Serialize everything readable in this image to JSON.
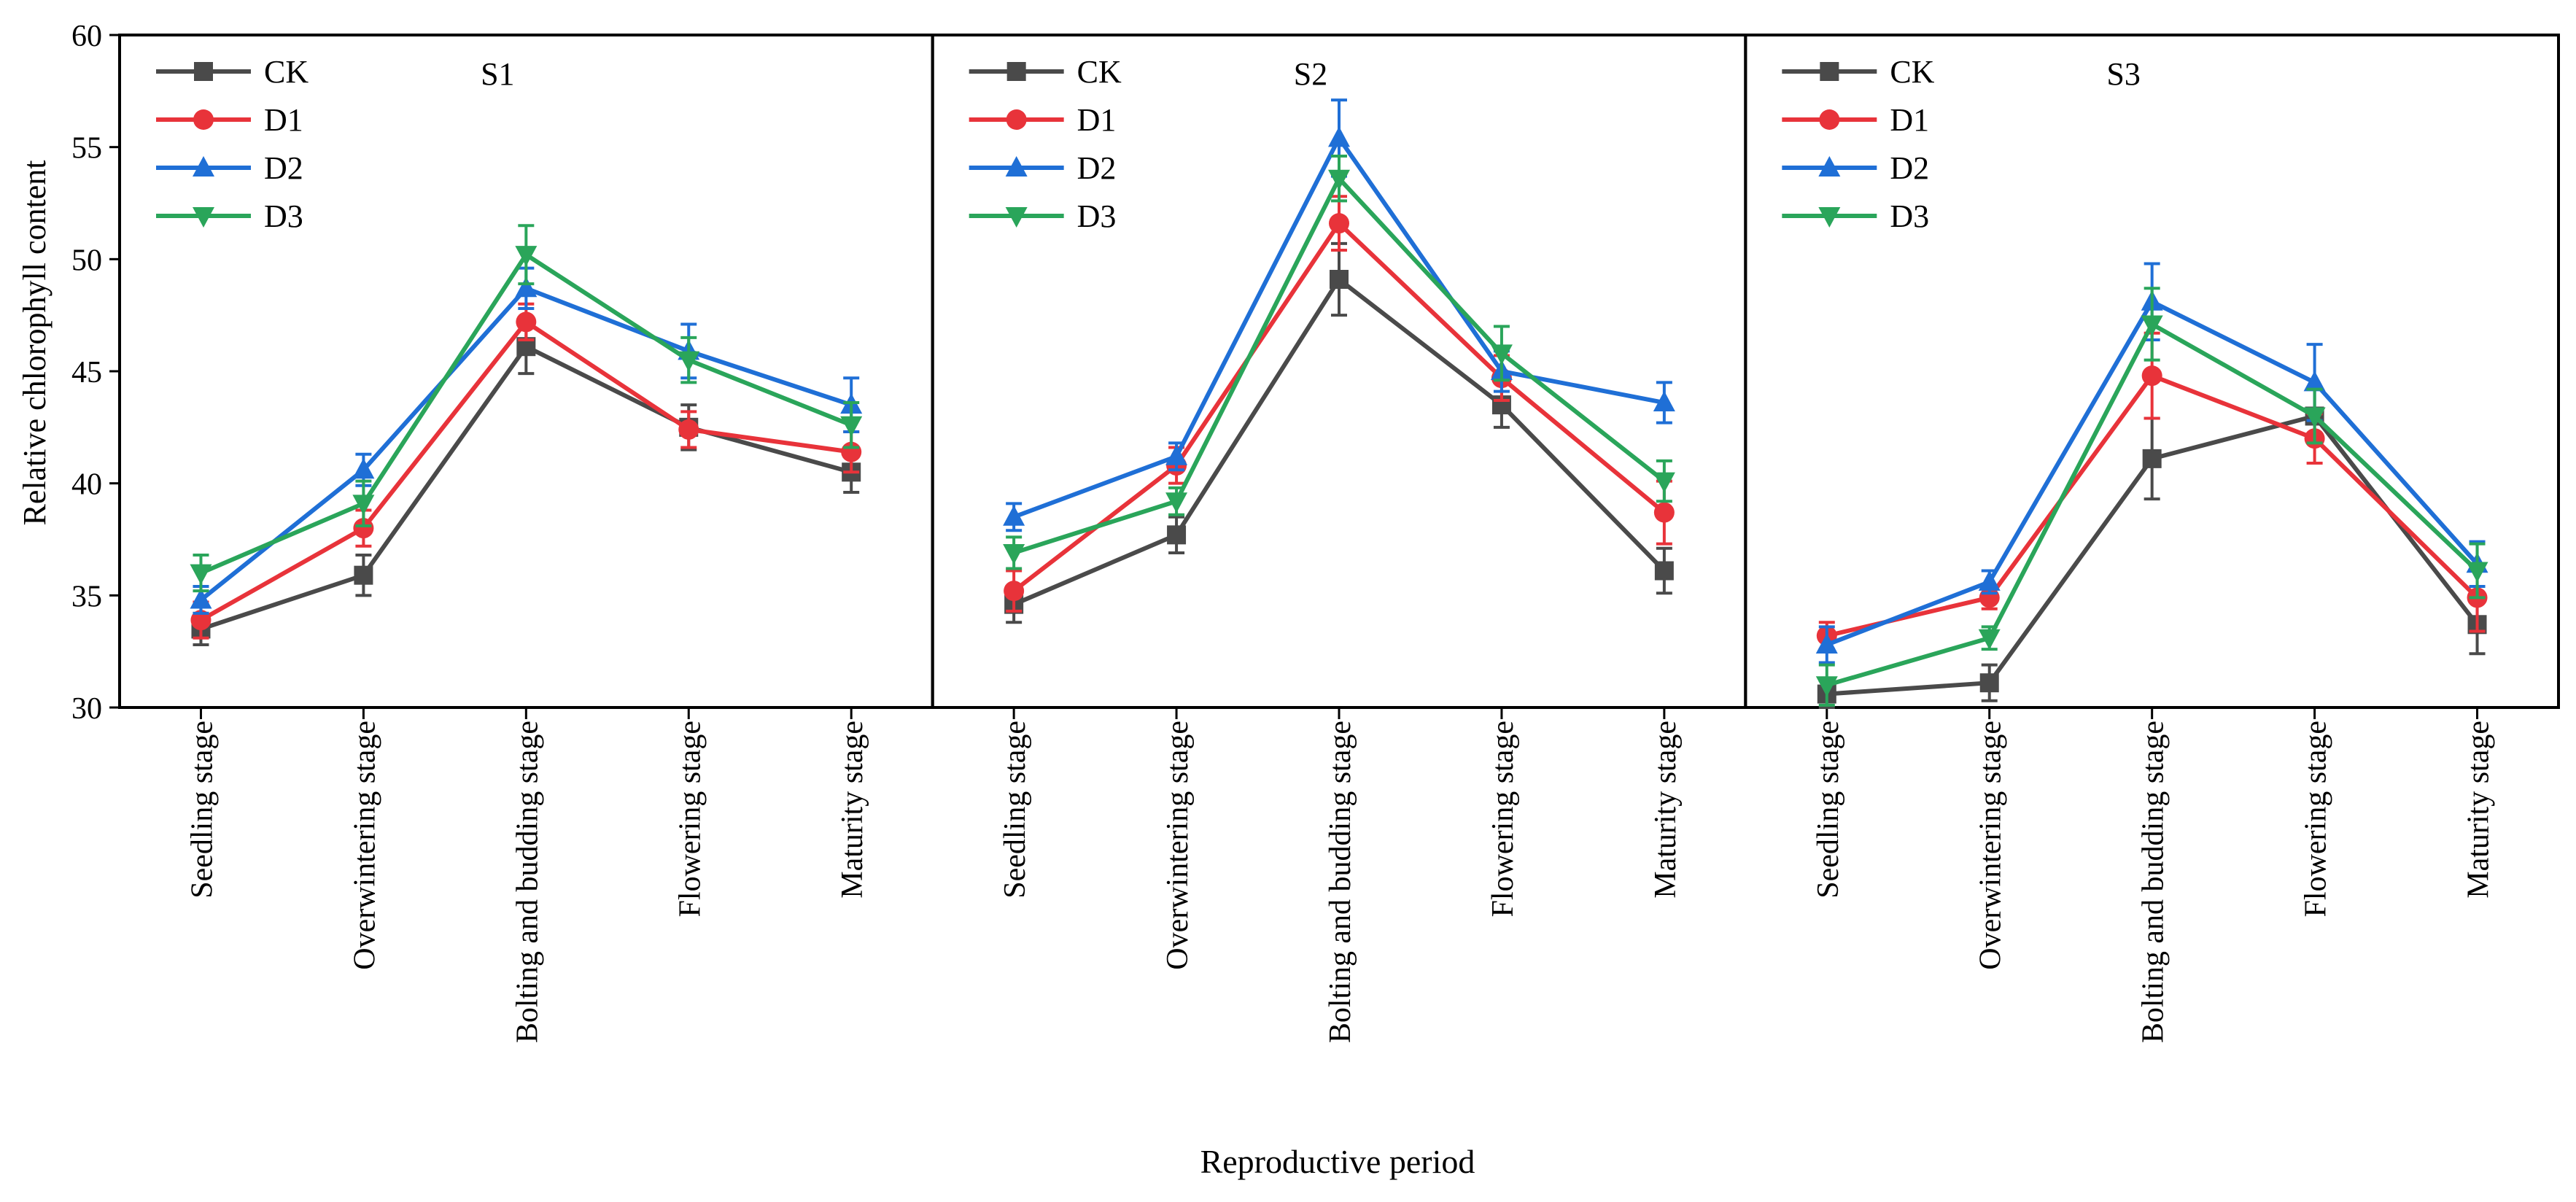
{
  "chart_data": {
    "type": "line",
    "ylabel": "Relative chlorophyll content",
    "xlabel": "Reproductive period",
    "ylim": [
      30,
      60
    ],
    "yticks": [
      30,
      35,
      40,
      45,
      50,
      55,
      60
    ],
    "categories": [
      "Seedling stage",
      "Overwintering stage",
      "Bolting and budding stage",
      "Flowering stage",
      "Maturity stage"
    ],
    "legend_position": "top-left",
    "error_bars": true,
    "series_styles": [
      {
        "name": "CK",
        "color": "#4a4a4a",
        "marker": "square"
      },
      {
        "name": "D1",
        "color": "#e8333a",
        "marker": "circle"
      },
      {
        "name": "D2",
        "color": "#1f6fd6",
        "marker": "triangle-up"
      },
      {
        "name": "D3",
        "color": "#2aa55a",
        "marker": "triangle-down"
      }
    ],
    "panels": [
      {
        "title": "S1",
        "series": [
          {
            "name": "CK",
            "values": [
              33.5,
              35.9,
              46.1,
              42.5,
              40.5
            ],
            "errors": [
              0.7,
              0.9,
              1.2,
              1.0,
              0.9
            ]
          },
          {
            "name": "D1",
            "values": [
              33.9,
              38.0,
              47.2,
              42.4,
              41.4
            ],
            "errors": [
              0.8,
              0.8,
              0.8,
              0.8,
              0.9
            ]
          },
          {
            "name": "D2",
            "values": [
              34.8,
              40.6,
              48.7,
              45.9,
              43.5
            ],
            "errors": [
              0.6,
              0.7,
              0.9,
              1.2,
              1.2
            ]
          },
          {
            "name": "D3",
            "values": [
              36.0,
              39.1,
              50.2,
              45.5,
              42.6
            ],
            "errors": [
              0.8,
              1.0,
              1.3,
              1.0,
              1.0
            ]
          }
        ]
      },
      {
        "title": "S2",
        "series": [
          {
            "name": "CK",
            "values": [
              34.6,
              37.7,
              49.1,
              43.5,
              36.1
            ],
            "errors": [
              0.8,
              0.8,
              1.6,
              1.0,
              1.0
            ]
          },
          {
            "name": "D1",
            "values": [
              35.2,
              40.8,
              51.6,
              44.7,
              38.7
            ],
            "errors": [
              0.9,
              0.8,
              1.2,
              1.0,
              1.4
            ]
          },
          {
            "name": "D2",
            "values": [
              38.5,
              41.2,
              55.4,
              45.0,
              43.6
            ],
            "errors": [
              0.6,
              0.6,
              1.7,
              0.9,
              0.9
            ]
          },
          {
            "name": "D3",
            "values": [
              36.9,
              39.2,
              53.6,
              45.8,
              40.1
            ],
            "errors": [
              0.7,
              0.6,
              1.0,
              1.2,
              0.9
            ]
          }
        ]
      },
      {
        "title": "S3",
        "series": [
          {
            "name": "CK",
            "values": [
              30.6,
              31.1,
              41.1,
              43.0,
              33.7
            ],
            "errors": [
              0.6,
              0.8,
              1.8,
              1.2,
              1.3
            ]
          },
          {
            "name": "D1",
            "values": [
              33.2,
              34.9,
              44.8,
              42.0,
              34.9
            ],
            "errors": [
              0.6,
              0.5,
              1.9,
              1.1,
              1.5
            ]
          },
          {
            "name": "D2",
            "values": [
              32.8,
              35.6,
              48.1,
              44.5,
              36.4
            ],
            "errors": [
              0.8,
              0.5,
              1.7,
              1.7,
              1.0
            ]
          },
          {
            "name": "D3",
            "values": [
              31.0,
              33.1,
              47.1,
              43.0,
              36.1
            ],
            "errors": [
              0.9,
              0.5,
              1.6,
              1.2,
              1.2
            ]
          }
        ]
      }
    ]
  }
}
